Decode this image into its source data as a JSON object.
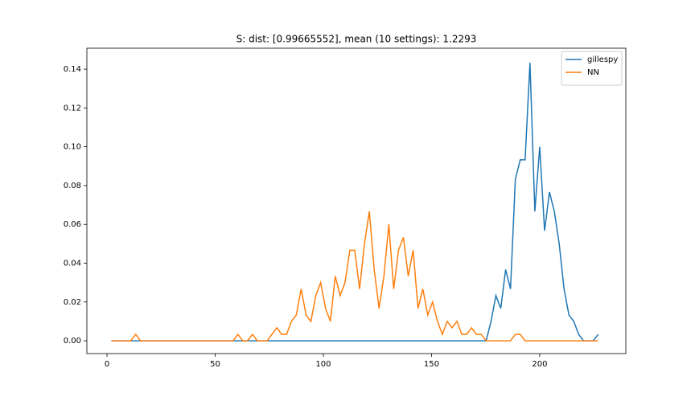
{
  "chart_data": {
    "type": "line",
    "title": "S: dist: [0.99665552], mean (10 settings): 1.2293",
    "x": [
      2,
      4.25,
      6.5,
      8.75,
      11,
      13.25,
      15.5,
      17.75,
      20,
      22.25,
      24.5,
      26.75,
      29,
      31.25,
      33.5,
      35.75,
      38,
      40.25,
      42.5,
      44.75,
      47,
      49.25,
      51.5,
      53.75,
      56,
      58.25,
      60.5,
      62.75,
      65,
      67.25,
      69.5,
      71.75,
      74,
      76.25,
      78.5,
      80.75,
      83,
      85.25,
      87.5,
      89.75,
      92,
      94.25,
      96.5,
      98.75,
      101,
      103.25,
      105.5,
      107.75,
      110,
      112.25,
      114.5,
      116.75,
      119,
      121.25,
      123.5,
      125.75,
      128,
      130.25,
      132.5,
      134.75,
      137,
      139.25,
      141.5,
      143.75,
      146,
      148.25,
      150.5,
      152.75,
      155,
      157.25,
      159.5,
      161.75,
      164,
      166.25,
      168.5,
      170.75,
      173,
      175.25,
      177.5,
      179.75,
      182,
      184.25,
      186.5,
      188.75,
      191,
      193.25,
      195.5,
      197.75,
      200,
      202.25,
      204.5,
      206.75,
      209,
      211.25,
      213.5,
      215.75,
      218,
      220.25,
      222.5,
      224.75,
      227
    ],
    "series": [
      {
        "name": "gillespy",
        "color": "#1f77b4",
        "values": [
          0,
          0,
          0,
          0,
          0,
          0,
          0,
          0,
          0,
          0,
          0,
          0,
          0,
          0,
          0,
          0,
          0,
          0,
          0,
          0,
          0,
          0,
          0,
          0,
          0,
          0,
          0,
          0,
          0,
          0,
          0,
          0,
          0,
          0,
          0,
          0,
          0,
          0,
          0,
          0,
          0,
          0,
          0,
          0,
          0,
          0,
          0,
          0,
          0,
          0,
          0,
          0,
          0,
          0,
          0,
          0,
          0,
          0,
          0,
          0,
          0,
          0,
          0,
          0,
          0,
          0,
          0,
          0,
          0,
          0,
          0,
          0,
          0,
          0,
          0,
          0,
          0,
          0,
          0.01,
          0.0233,
          0.0167,
          0.0367,
          0.0267,
          0.0833,
          0.0933,
          0.0933,
          0.1433,
          0.0667,
          0.1,
          0.0567,
          0.0767,
          0.0667,
          0.05,
          0.0267,
          0.0133,
          0.01,
          0.0033,
          0,
          0,
          0,
          0.0033
        ]
      },
      {
        "name": "NN",
        "color": "#ff7f0e",
        "values": [
          0,
          0,
          0,
          0,
          0,
          0.0033,
          0,
          0,
          0,
          0,
          0,
          0,
          0,
          0,
          0,
          0,
          0,
          0,
          0,
          0,
          0,
          0,
          0,
          0,
          0,
          0,
          0.0033,
          0,
          0,
          0.0033,
          0,
          0,
          0,
          0.0033,
          0.0067,
          0.0033,
          0.0033,
          0.01,
          0.0133,
          0.0267,
          0.0133,
          0.01,
          0.0233,
          0.03,
          0.0167,
          0.01,
          0.0333,
          0.0233,
          0.03,
          0.0467,
          0.0467,
          0.0267,
          0.05,
          0.0667,
          0.0367,
          0.0167,
          0.0333,
          0.06,
          0.0267,
          0.0467,
          0.0533,
          0.0333,
          0.0467,
          0.0167,
          0.0267,
          0.0133,
          0.02,
          0.01,
          0.0033,
          0.01,
          0.0067,
          0.01,
          0.0033,
          0.0033,
          0.0067,
          0.0033,
          0.0033,
          0,
          0,
          0,
          0,
          0,
          0,
          0.0033,
          0.0033,
          0,
          0,
          0,
          0,
          0,
          0,
          0,
          0,
          0,
          0,
          0,
          0,
          0,
          0,
          0,
          0
        ]
      }
    ],
    "xlim": [
      -9.3,
      239.8
    ],
    "xticks": [
      0,
      50,
      100,
      150,
      200
    ],
    "ylim": [
      -0.0066,
      0.1508
    ],
    "yticks": [
      {
        "value": 0,
        "label": "0.00"
      },
      {
        "value": 0.02,
        "label": "0.02"
      },
      {
        "value": 0.04,
        "label": "0.04"
      },
      {
        "value": 0.06,
        "label": "0.06"
      },
      {
        "value": 0.08,
        "label": "0.08"
      },
      {
        "value": 0.1,
        "label": "0.10"
      },
      {
        "value": 0.12,
        "label": "0.12"
      },
      {
        "value": 0.14,
        "label": "0.14"
      }
    ],
    "legend": "upper right"
  }
}
